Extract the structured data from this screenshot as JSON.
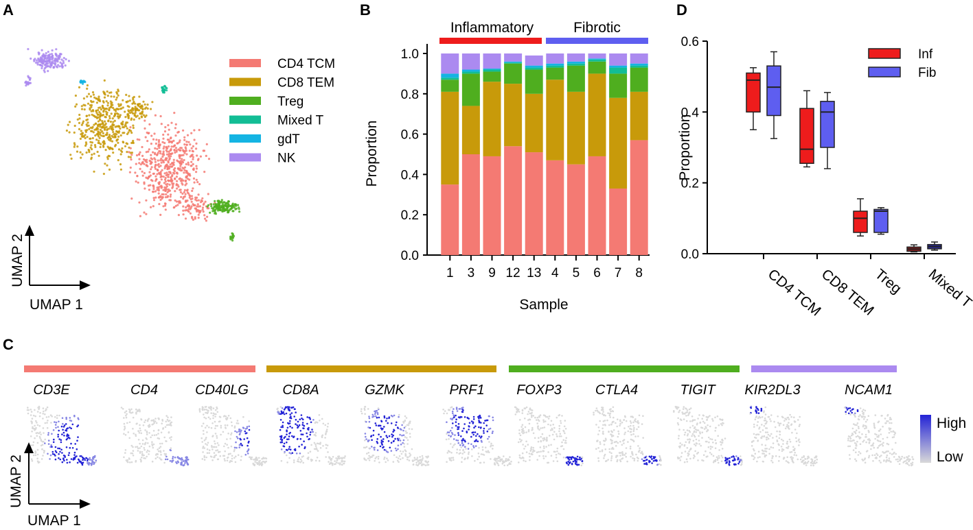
{
  "panels": {
    "A": "A",
    "B": "B",
    "C": "C",
    "D": "D"
  },
  "colors": {
    "CD4 TCM": "#f47a73",
    "CD8 TEM": "#c89a0a",
    "Treg": "#4fae1f",
    "Mixed T": "#12bd95",
    "gdT": "#14b4e3",
    "NK": "#ab8af0",
    "inflammatory": "#ee1c1c",
    "fibrotic": "#5e5ef0",
    "expr_high": "#2323d6",
    "expr_low": "#d9d9d9"
  },
  "umap_a": {
    "x_label": "UMAP 1",
    "y_label": "UMAP 2",
    "legend": [
      "CD4 TCM",
      "CD8 TEM",
      "Treg",
      "Mixed T",
      "gdT",
      "NK"
    ]
  },
  "chart_data": [
    {
      "id": "B",
      "type": "bar",
      "stacked": true,
      "title": "",
      "xlabel": "Sample",
      "ylabel": "Proportion",
      "ylim": [
        0,
        1.0
      ],
      "yticks": [
        "0.0",
        "0.2",
        "0.4",
        "0.6",
        "0.8",
        "1.0"
      ],
      "groups": [
        {
          "label": "Inflammatory",
          "samples": [
            "1",
            "3",
            "9",
            "12",
            "13"
          ]
        },
        {
          "label": "Fibrotic",
          "samples": [
            "4",
            "5",
            "6",
            "7",
            "8"
          ]
        }
      ],
      "categories": [
        "1",
        "3",
        "9",
        "12",
        "13",
        "4",
        "5",
        "6",
        "7",
        "8"
      ],
      "series": [
        {
          "name": "CD4 TCM",
          "values": [
            0.35,
            0.5,
            0.49,
            0.54,
            0.51,
            0.47,
            0.45,
            0.49,
            0.33,
            0.57
          ]
        },
        {
          "name": "CD8 TEM",
          "values": [
            0.46,
            0.24,
            0.37,
            0.31,
            0.29,
            0.4,
            0.36,
            0.41,
            0.45,
            0.24
          ]
        },
        {
          "name": "Treg",
          "values": [
            0.06,
            0.16,
            0.05,
            0.1,
            0.12,
            0.06,
            0.13,
            0.06,
            0.12,
            0.12
          ]
        },
        {
          "name": "Mixed T",
          "values": [
            0.01,
            0.01,
            0.01,
            0.005,
            0.01,
            0.01,
            0.01,
            0.01,
            0.03,
            0.01
          ]
        },
        {
          "name": "gdT",
          "values": [
            0.02,
            0.01,
            0.005,
            0.005,
            0.01,
            0.01,
            0.01,
            0.005,
            0.01,
            0.01
          ]
        },
        {
          "name": "NK",
          "values": [
            0.1,
            0.08,
            0.075,
            0.04,
            0.05,
            0.05,
            0.04,
            0.025,
            0.06,
            0.05
          ]
        }
      ]
    },
    {
      "id": "D",
      "type": "box",
      "title": "",
      "xlabel": "",
      "ylabel": "Proportion",
      "ylim": [
        0,
        0.6
      ],
      "yticks": [
        "0.0",
        "0.2",
        "0.4",
        "0.6"
      ],
      "categories": [
        "CD4 TCM",
        "CD8 TEM",
        "Treg",
        "Mixed T"
      ],
      "legend": [
        "Inf",
        "Fib"
      ],
      "series": [
        {
          "name": "Inf",
          "boxes": [
            {
              "min": 0.35,
              "q1": 0.4,
              "median": 0.49,
              "q3": 0.51,
              "max": 0.525
            },
            {
              "min": 0.245,
              "q1": 0.255,
              "median": 0.295,
              "q3": 0.41,
              "max": 0.46
            },
            {
              "min": 0.05,
              "q1": 0.06,
              "median": 0.1,
              "q3": 0.12,
              "max": 0.155
            },
            {
              "min": 0.005,
              "q1": 0.008,
              "median": 0.013,
              "q3": 0.02,
              "max": 0.025
            }
          ]
        },
        {
          "name": "Fib",
          "boxes": [
            {
              "min": 0.325,
              "q1": 0.39,
              "median": 0.47,
              "q3": 0.53,
              "max": 0.57
            },
            {
              "min": 0.24,
              "q1": 0.3,
              "median": 0.4,
              "q3": 0.43,
              "max": 0.455
            },
            {
              "min": 0.055,
              "q1": 0.06,
              "median": 0.12,
              "q3": 0.125,
              "max": 0.13
            },
            {
              "min": 0.01,
              "q1": 0.015,
              "median": 0.02,
              "q3": 0.027,
              "max": 0.033
            }
          ]
        }
      ]
    }
  ],
  "panel_c": {
    "x_label": "UMAP 1",
    "y_label": "UMAP 2",
    "legend_high": "High",
    "legend_low": "Low",
    "groups": [
      {
        "cell_type": "CD4 TCM",
        "genes": [
          "CD3E",
          "CD4",
          "CD40LG"
        ]
      },
      {
        "cell_type": "CD8 TEM",
        "genes": [
          "CD8A",
          "GZMK",
          "PRF1"
        ]
      },
      {
        "cell_type": "Treg",
        "genes": [
          "FOXP3",
          "CTLA4",
          "TIGIT"
        ]
      },
      {
        "cell_type": "NK",
        "genes": [
          "KIR2DL3",
          "NCAM1"
        ]
      }
    ]
  }
}
